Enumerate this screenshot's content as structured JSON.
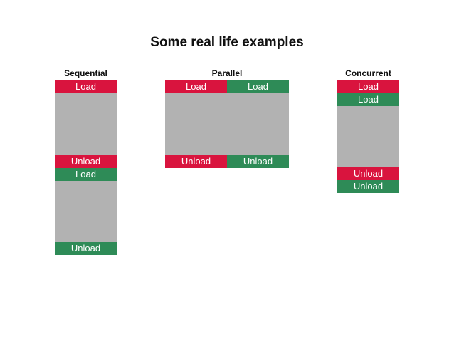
{
  "title": "Some real life examples",
  "colors": {
    "load_red": "#d9143e",
    "load_green": "#2e8b57",
    "work_gray": "#b2b2b2"
  },
  "sequential": {
    "heading": "Sequential",
    "task1": {
      "load": "Load",
      "unload": "Unload"
    },
    "task2": {
      "load": "Load",
      "unload": "Unload"
    }
  },
  "parallel": {
    "heading": "Parallel",
    "task1": {
      "load": "Load",
      "unload": "Unload"
    },
    "task2": {
      "load": "Load",
      "unload": "Unload"
    }
  },
  "concurrent": {
    "heading": "Concurrent",
    "task1": {
      "load": "Load",
      "unload": "Unload"
    },
    "task2": {
      "load": "Load",
      "unload": "Unload"
    }
  }
}
